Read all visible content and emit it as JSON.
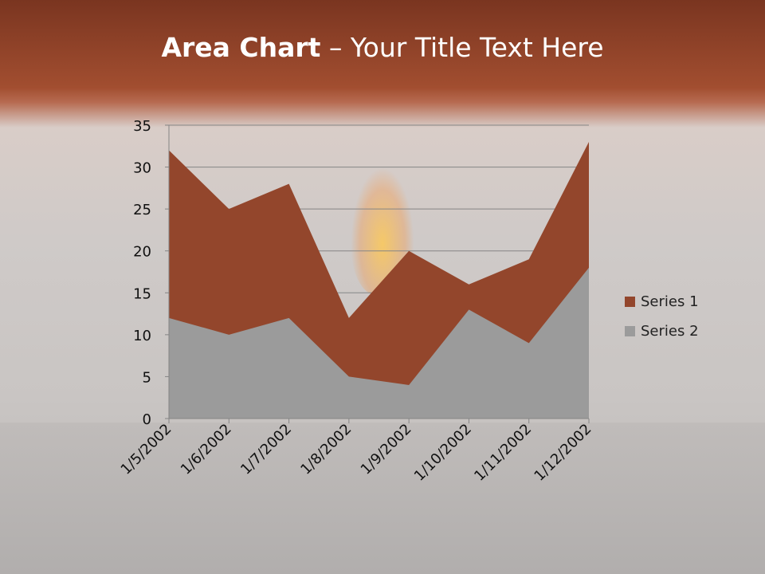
{
  "title": {
    "bold": "Area Chart",
    "rest": " – Your Title Text Here"
  },
  "chart_data": {
    "type": "area",
    "categories": [
      "1/5/2002",
      "1/6/2002",
      "1/7/2002",
      "1/8/2002",
      "1/9/2002",
      "1/10/2002",
      "1/11/2002",
      "1/12/2002"
    ],
    "series": [
      {
        "name": "Series 1",
        "values": [
          32,
          25,
          28,
          12,
          20,
          16,
          19,
          33
        ],
        "color": "#93462c"
      },
      {
        "name": "Series 2",
        "values": [
          12,
          10,
          12,
          5,
          4,
          13,
          9,
          18
        ],
        "color": "#9b9b9b"
      }
    ],
    "ylim": [
      0,
      35
    ],
    "yticks": [
      0,
      5,
      10,
      15,
      20,
      25,
      30,
      35
    ],
    "grid": true,
    "legend": "right"
  }
}
